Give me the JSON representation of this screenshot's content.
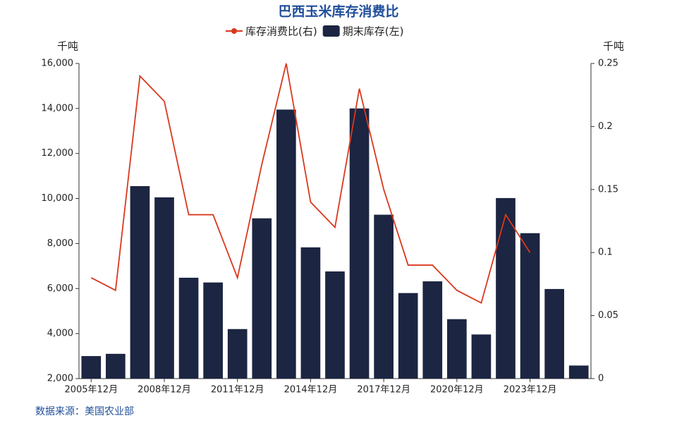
{
  "chart_data": {
    "type": "bar_line",
    "title": "巴西玉米库存消费比",
    "y_unit": "千吨",
    "y2_unit": "千吨",
    "source": "数据来源：美国农业部",
    "categories": [
      "2005年12月",
      null,
      null,
      "2008年12月",
      null,
      null,
      "2011年12月",
      null,
      null,
      "2014年12月",
      null,
      null,
      "2017年12月",
      null,
      null,
      "2020年12月",
      null,
      null,
      "2023年12月",
      null,
      null
    ],
    "series": [
      {
        "name": "库存消费比(右)",
        "type": "line",
        "axis": "y2",
        "color": "#d9381e",
        "values": [
          0.08,
          0.07,
          0.24,
          0.22,
          0.13,
          0.13,
          0.08,
          0.17,
          0.25,
          0.14,
          0.12,
          0.23,
          0.15,
          0.09,
          0.09,
          0.07,
          0.06,
          0.13,
          0.1,
          null,
          null
        ]
      },
      {
        "name": "期末库存(左)",
        "type": "bar",
        "axis": "y",
        "color": "#1c2541",
        "values": [
          3000,
          3100,
          10550,
          10050,
          6480,
          6270,
          4200,
          9120,
          13950,
          7830,
          6760,
          14000,
          9280,
          5800,
          6320,
          4640,
          3960,
          10020,
          8460,
          5980,
          2580
        ]
      }
    ],
    "ylim": [
      2000,
      16000
    ],
    "yticks": [
      {
        "value": 2000,
        "label": "2,000"
      },
      {
        "value": 4000,
        "label": "4,000"
      },
      {
        "value": 6000,
        "label": "6,000"
      },
      {
        "value": 8000,
        "label": "8,000"
      },
      {
        "value": 10000,
        "label": "10,000"
      },
      {
        "value": 12000,
        "label": "12,000"
      },
      {
        "value": 14000,
        "label": "14,000"
      },
      {
        "value": 16000,
        "label": "16,000"
      }
    ],
    "y2lim": [
      0,
      0.25
    ],
    "y2ticks": [
      0,
      0.05,
      0.1,
      0.15,
      0.2,
      0.25
    ],
    "grid": false
  }
}
